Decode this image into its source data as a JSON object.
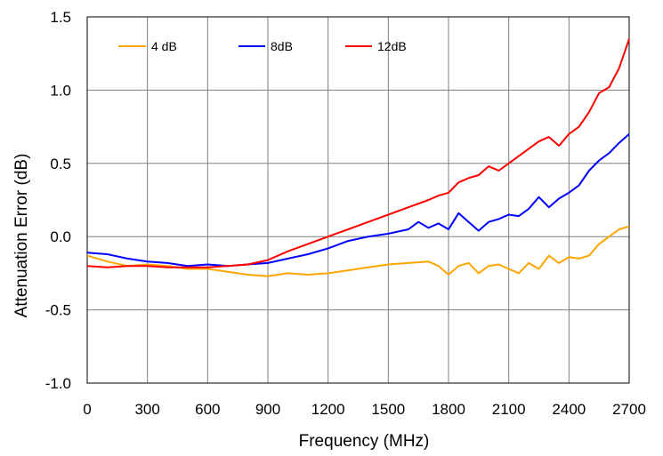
{
  "chart_data": {
    "type": "line",
    "title": "",
    "xlabel": "Frequency (MHz)",
    "ylabel": "Attenuation Error (dB)",
    "xlim": [
      0,
      2700
    ],
    "ylim": [
      -1.0,
      1.5
    ],
    "xticks": [
      0,
      300,
      600,
      900,
      1200,
      1500,
      1800,
      2100,
      2400,
      2700
    ],
    "xtick_labels": [
      "0",
      "300",
      "600",
      "900",
      "1200",
      "1500",
      "1800",
      "2100",
      "2400",
      "2700"
    ],
    "yticks": [
      -1.0,
      -0.5,
      0.0,
      0.5,
      1.0,
      1.5
    ],
    "ytick_labels": [
      "-1.0",
      "-0.5",
      "0.0",
      "0.5",
      "1.0",
      "1.5"
    ],
    "grid": true,
    "legend_position": "top-left",
    "series": [
      {
        "name": "4 dB",
        "color": "#FFA500",
        "x": [
          0,
          100,
          200,
          300,
          400,
          500,
          600,
          700,
          800,
          900,
          1000,
          1100,
          1200,
          1300,
          1400,
          1500,
          1600,
          1700,
          1750,
          1800,
          1850,
          1900,
          1950,
          2000,
          2050,
          2100,
          2150,
          2200,
          2250,
          2300,
          2350,
          2400,
          2450,
          2500,
          2550,
          2600,
          2650,
          2700
        ],
        "y": [
          -0.13,
          -0.17,
          -0.2,
          -0.19,
          -0.2,
          -0.22,
          -0.22,
          -0.24,
          -0.26,
          -0.27,
          -0.25,
          -0.26,
          -0.25,
          -0.23,
          -0.21,
          -0.19,
          -0.18,
          -0.17,
          -0.2,
          -0.26,
          -0.2,
          -0.18,
          -0.25,
          -0.2,
          -0.19,
          -0.22,
          -0.25,
          -0.18,
          -0.22,
          -0.13,
          -0.18,
          -0.14,
          -0.15,
          -0.13,
          -0.05,
          0.0,
          0.05,
          0.07
        ]
      },
      {
        "name": "8dB",
        "color": "#0000FF",
        "x": [
          0,
          100,
          200,
          300,
          400,
          500,
          600,
          700,
          800,
          900,
          1000,
          1100,
          1200,
          1300,
          1400,
          1500,
          1600,
          1650,
          1700,
          1750,
          1800,
          1850,
          1900,
          1950,
          2000,
          2050,
          2100,
          2150,
          2200,
          2250,
          2300,
          2350,
          2400,
          2450,
          2500,
          2550,
          2600,
          2650,
          2700
        ],
        "y": [
          -0.11,
          -0.12,
          -0.15,
          -0.17,
          -0.18,
          -0.2,
          -0.19,
          -0.2,
          -0.19,
          -0.18,
          -0.15,
          -0.12,
          -0.08,
          -0.03,
          0.0,
          0.02,
          0.05,
          0.1,
          0.06,
          0.09,
          0.05,
          0.16,
          0.1,
          0.04,
          0.1,
          0.12,
          0.15,
          0.14,
          0.19,
          0.27,
          0.2,
          0.26,
          0.3,
          0.35,
          0.45,
          0.52,
          0.57,
          0.64,
          0.7
        ]
      },
      {
        "name": "12dB",
        "color": "#FF0000",
        "x": [
          0,
          100,
          200,
          300,
          400,
          500,
          600,
          700,
          800,
          900,
          1000,
          1100,
          1200,
          1300,
          1400,
          1500,
          1600,
          1700,
          1750,
          1800,
          1850,
          1900,
          1950,
          2000,
          2050,
          2100,
          2150,
          2200,
          2250,
          2300,
          2350,
          2400,
          2450,
          2500,
          2550,
          2600,
          2650,
          2700
        ],
        "y": [
          -0.2,
          -0.21,
          -0.2,
          -0.2,
          -0.21,
          -0.21,
          -0.21,
          -0.2,
          -0.19,
          -0.16,
          -0.1,
          -0.05,
          0.0,
          0.05,
          0.1,
          0.15,
          0.2,
          0.25,
          0.28,
          0.3,
          0.37,
          0.4,
          0.42,
          0.48,
          0.45,
          0.5,
          0.55,
          0.6,
          0.65,
          0.68,
          0.62,
          0.7,
          0.75,
          0.85,
          0.98,
          1.02,
          1.15,
          1.35
        ]
      }
    ]
  }
}
